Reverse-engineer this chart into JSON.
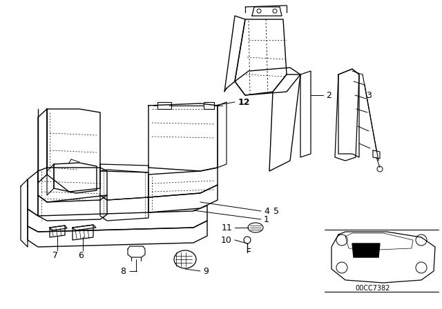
{
  "background_color": "#ffffff",
  "line_color": "#000000",
  "text_color": "#000000",
  "font_size": 9,
  "fig_width": 6.4,
  "fig_height": 4.48,
  "dpi": 100,
  "car_label": "00CC7382"
}
